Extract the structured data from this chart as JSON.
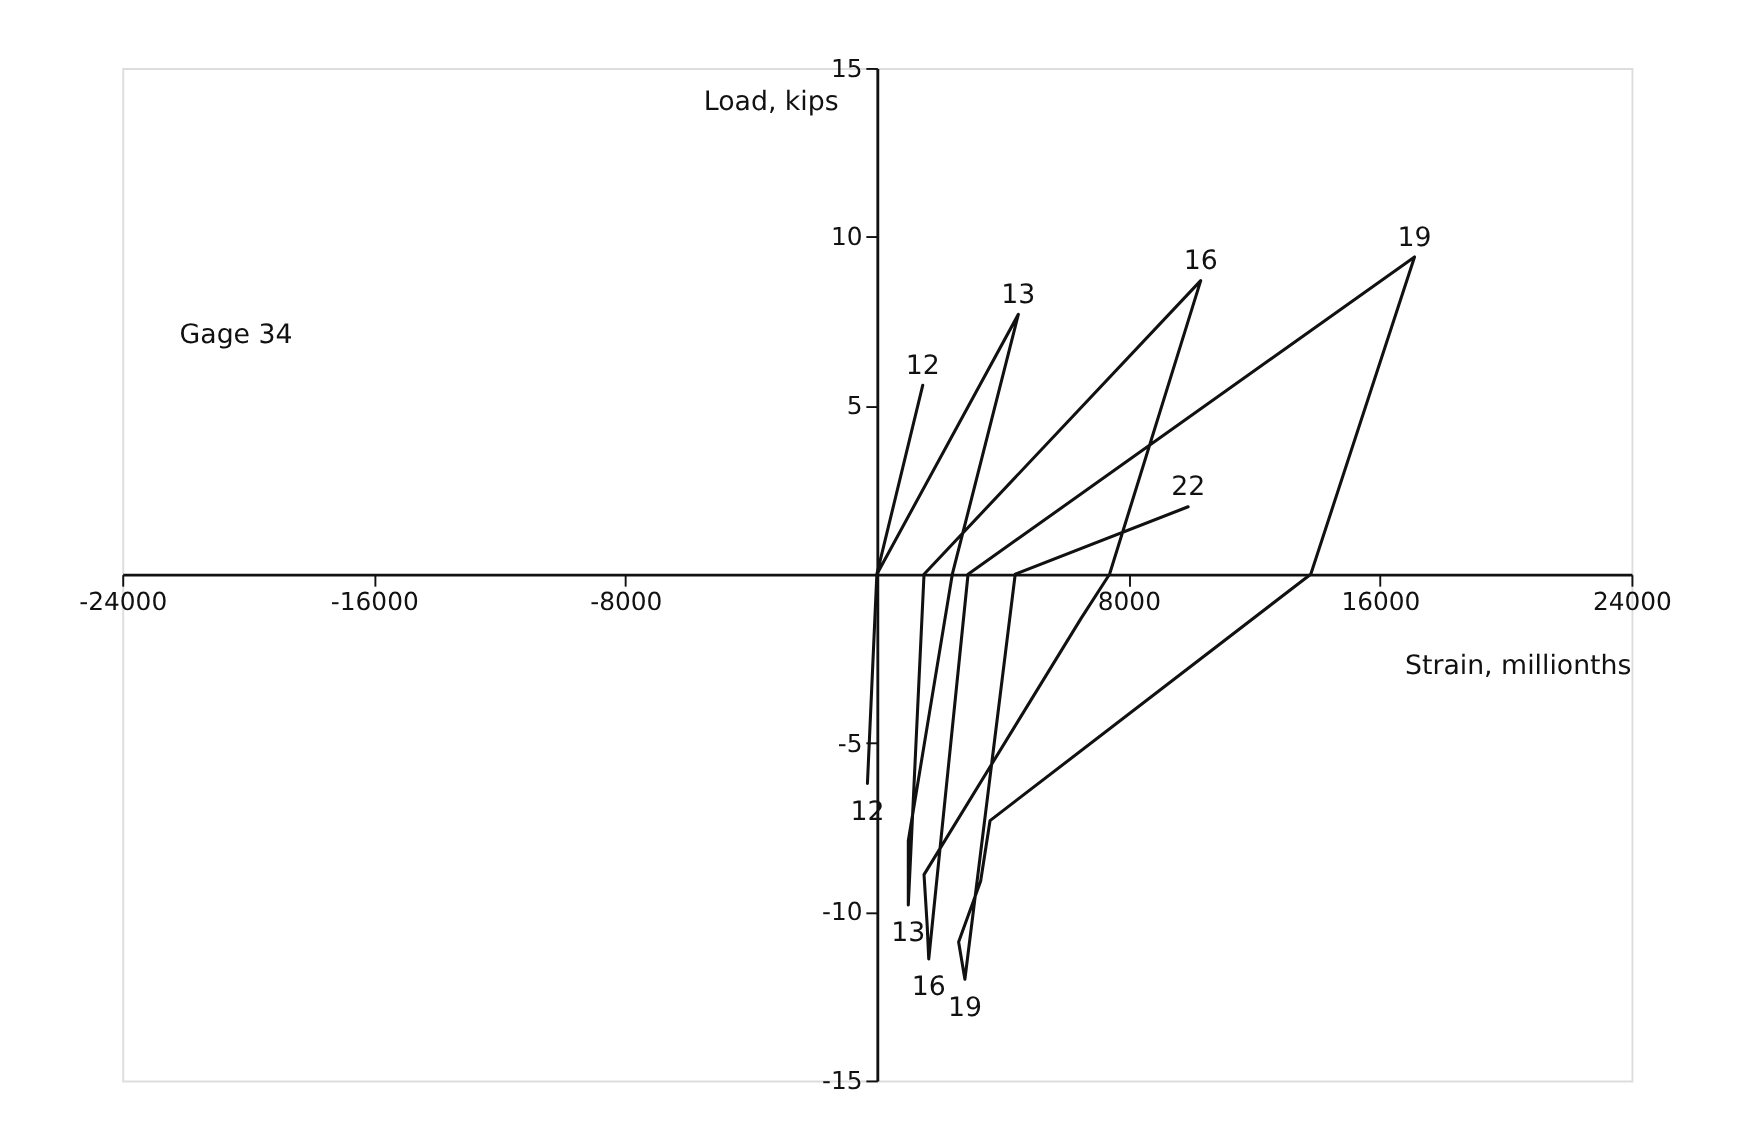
{
  "chart_data": {
    "type": "line",
    "xlabel": "Strain, millionths",
    "ylabel": "Load, kips",
    "x": [
      0,
      1460,
      0,
      -300,
      0,
      4500,
      2400,
      1000,
      1000,
      1500,
      10300,
      7400,
      6500,
      1500,
      1600,
      1650,
      2900,
      17100,
      13800,
      3600,
      3300,
      2600,
      2800,
      4400,
      9900
    ],
    "series": [
      {
        "color": "#111111",
        "values": [
          0,
          5.6,
          0,
          -6.2,
          0,
          7.7,
          0,
          -7.9,
          -9.8,
          0,
          8.7,
          0,
          -1.3,
          -8.9,
          -10.4,
          -11.4,
          0,
          9.4,
          0,
          -7.3,
          -9.1,
          -10.9,
          -12,
          0,
          2.0
        ]
      }
    ],
    "xlim": [
      -24000,
      24000
    ],
    "ylim": [
      -15,
      15
    ],
    "xticks": [
      -24000,
      -16000,
      -8000,
      8000,
      16000,
      24000
    ],
    "yticks": [
      -15,
      -10,
      -5,
      5,
      10,
      15
    ],
    "grid": false,
    "marker": "none",
    "line_style": "solid",
    "annotations": [
      "Gage 34",
      {
        "text": "12",
        "x": 1460,
        "y": 5.6
      },
      {
        "text": "13",
        "x": 4500,
        "y": 7.7
      },
      {
        "text": "16",
        "x": 10300,
        "y": 8.7
      },
      {
        "text": "19",
        "x": 17100,
        "y": 9.4
      },
      {
        "text": "22",
        "x": 9900,
        "y": 2.0
      },
      {
        "text": "12",
        "x": -300,
        "y": -6.2
      },
      {
        "text": "13",
        "x": 1000,
        "y": -9.8
      },
      {
        "text": "16",
        "x": 1650,
        "y": -11.4
      },
      {
        "text": "19",
        "x": 2800,
        "y": -12
      }
    ]
  }
}
